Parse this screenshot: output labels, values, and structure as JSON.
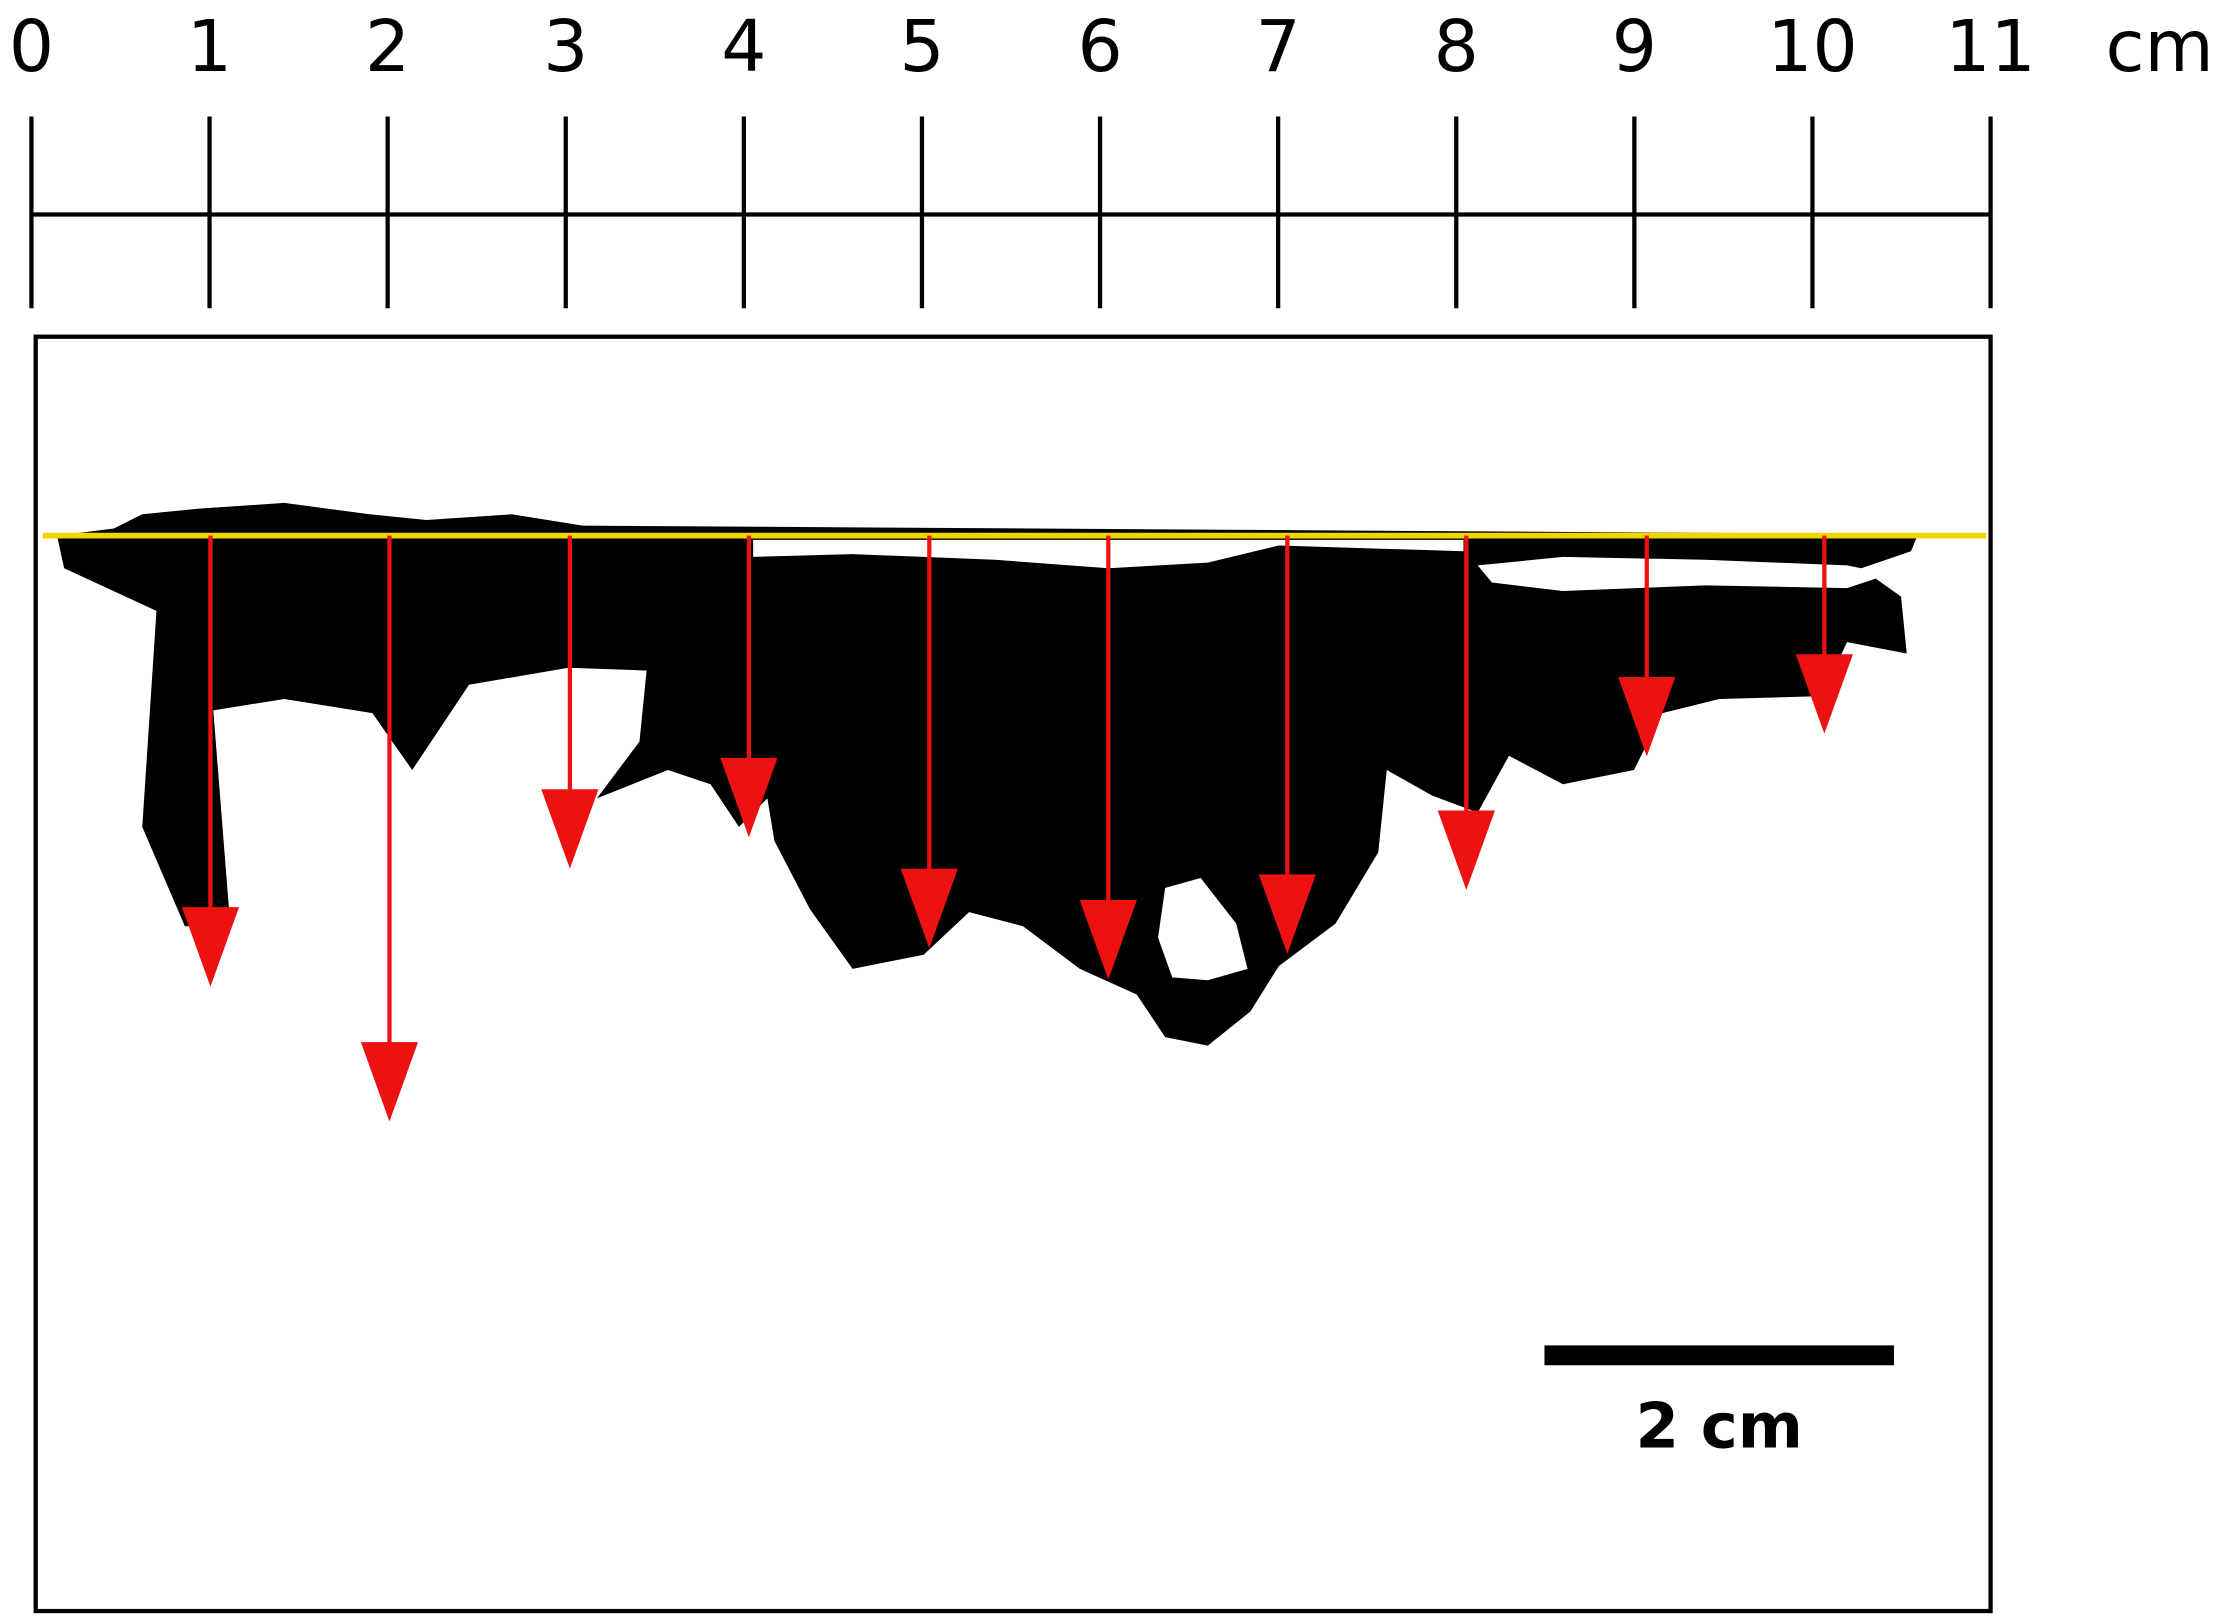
{
  "ruler": {
    "labels": [
      "0",
      "1",
      "2",
      "3",
      "4",
      "5",
      "6",
      "7",
      "8",
      "9",
      "10",
      "11"
    ],
    "unit": "cm"
  },
  "scale_bar": {
    "label": "2 cm"
  }
}
